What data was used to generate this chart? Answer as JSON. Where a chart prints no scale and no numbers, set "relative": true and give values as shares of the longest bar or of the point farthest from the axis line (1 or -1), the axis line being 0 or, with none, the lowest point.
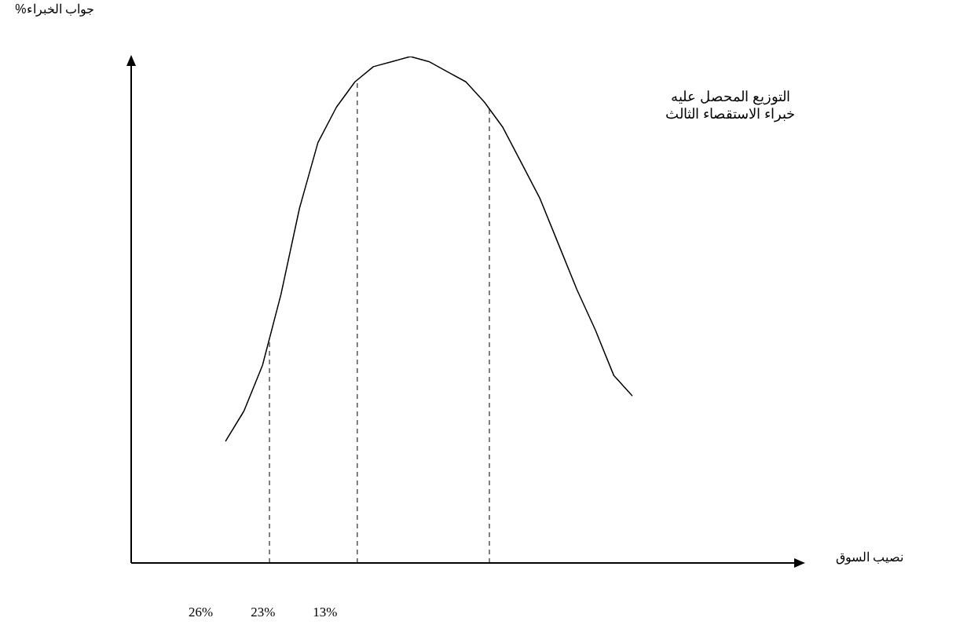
{
  "chart_data": {
    "type": "line",
    "relative": true,
    "categories": [
      null,
      null,
      null,
      null,
      null,
      null,
      null,
      null,
      null,
      null,
      null,
      null,
      null,
      null,
      null,
      null,
      null,
      null,
      null,
      null,
      null,
      null,
      null
    ],
    "tick_labels": false,
    "legend": false,
    "marker": "none",
    "line_style": "solid",
    "series": [
      {
        "color": "#000000",
        "values": [
          0.24,
          0.3,
          0.39,
          0.53,
          0.7,
          0.83,
          0.9,
          0.95,
          0.98,
          0.99,
          1,
          0.99,
          0.97,
          0.95,
          0.91,
          0.86,
          0.79,
          0.72,
          0.63,
          0.54,
          0.46,
          0.37,
          0.33
        ]
      }
    ],
    "annotations": [
      "التوزيع المحصل عليه خبراء الاستقصاء الثالث",
      "جواب الخبراء%",
      "نصيب السوق",
      "26%",
      "23%",
      "13%"
    ]
  }
}
